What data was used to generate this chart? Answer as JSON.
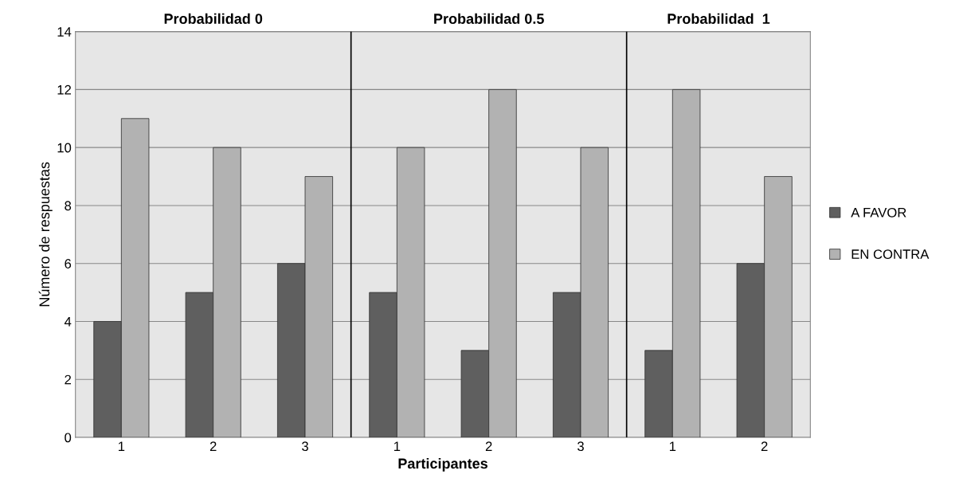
{
  "chart_data": {
    "type": "bar",
    "xlabel": "Participantes",
    "ylabel": "Número de respuestas",
    "categories": [
      "1",
      "2",
      "3",
      "1",
      "2",
      "3",
      "1",
      "2"
    ],
    "series": [
      {
        "name": "A FAVOR",
        "color": "#5f5f5f",
        "values": [
          4,
          5,
          6,
          5,
          3,
          5,
          3,
          6
        ]
      },
      {
        "name": "EN CONTRA",
        "color": "#b2b2b2",
        "values": [
          11,
          10,
          9,
          10,
          12,
          10,
          12,
          9
        ]
      }
    ],
    "annotations": [
      "Probabilidad 0",
      "Probabilidad 0.5",
      "Probabilidad  1"
    ],
    "ylim": [
      0,
      14
    ],
    "yticks": [
      0,
      2,
      4,
      6,
      8,
      10,
      12,
      14
    ],
    "grid": "y",
    "legend": "right"
  }
}
